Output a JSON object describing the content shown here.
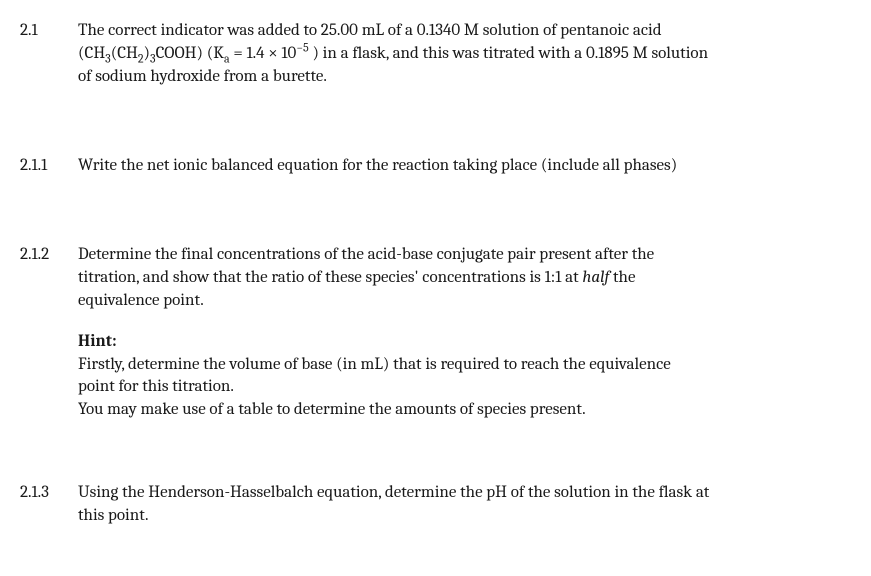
{
  "q21": {
    "num": "2.1",
    "line1a": "The correct indicator was added to 25.00 mL of a 0.1340 M solution of pentanoic acid",
    "formula_pre": "(CH",
    "f3": "3",
    "formula_mid1": "(CH",
    "f2a": "2",
    "formula_mid2": ")",
    "f3b": "3",
    "formula_mid3": "COOH) (K",
    "fa": "a",
    "eq": " = 1.4 × 10",
    "exp": "−5",
    "line2b": " ) in a flask, and this was titrated with a 0.1895 M solution",
    "line3": "of sodium hydroxide from a burette."
  },
  "q211": {
    "num": "2.1.1",
    "text": "Write the net ionic balanced equation for the reaction taking place (include all phases)"
  },
  "q212": {
    "num": "2.1.2",
    "p1a": "Determine the final concentrations of the acid-base conjugate pair present after the",
    "p1b": "titration, and show that the ratio of these species' concentrations is 1:1 at ",
    "half": "half",
    "p1c": " the",
    "p1d": "equivalence point.",
    "hint_label": "Hint:",
    "h1": "Firstly, determine the volume of base (in mL) that is required to reach the equivalence",
    "h2": "point for this titration.",
    "h3": "You may make use of a table to determine the amounts of species present."
  },
  "q213": {
    "num": "2.1.3",
    "l1": "Using the Henderson-Hasselbalch equation, determine the pH of the solution in the flask at",
    "l2": "this point."
  }
}
